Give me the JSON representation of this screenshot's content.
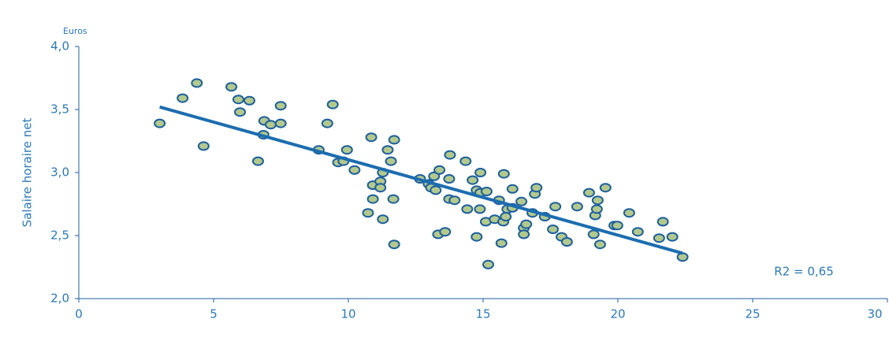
{
  "chart_data": {
    "type": "scatter",
    "y_label": "Salaire horaire net",
    "y_unit": "Euros",
    "annotation": "R2 = 0,65",
    "xlim": [
      0,
      30
    ],
    "xticks": [
      0,
      5,
      10,
      15,
      20,
      25,
      30
    ],
    "ylim": [
      2,
      4
    ],
    "yticks": [
      {
        "value": 2,
        "label": "2,0"
      },
      {
        "value": 2.5,
        "label": "2,5"
      },
      {
        "value": 3,
        "label": "3,0"
      },
      {
        "value": 3.5,
        "label": "3,5"
      },
      {
        "value": 4,
        "label": "4,0"
      }
    ],
    "color": "#b3c98c",
    "edge_color": "#1d5f9f",
    "line_color": "#1c6db0",
    "x": [
      3.0,
      3.85,
      4.38,
      4.63,
      5.66,
      5.92,
      5.98,
      6.33,
      6.65,
      6.85,
      6.88,
      7.12,
      7.49,
      7.49,
      8.9,
      9.22,
      9.42,
      9.62,
      9.82,
      9.95,
      10.23,
      10.73,
      10.85,
      10.91,
      10.91,
      11.19,
      11.19,
      11.28,
      11.28,
      11.46,
      11.58,
      11.67,
      11.7,
      11.7,
      12.66,
      12.98,
      13.07,
      13.18,
      13.24,
      13.38,
      13.33,
      13.59,
      13.74,
      13.77,
      13.74,
      13.94,
      14.35,
      14.41,
      14.61,
      14.76,
      14.76,
      14.9,
      14.88,
      14.9,
      15.13,
      15.1,
      15.19,
      15.43,
      15.59,
      15.68,
      15.77,
      15.75,
      15.9,
      15.84,
      16.09,
      16.09,
      16.42,
      16.51,
      16.51,
      16.6,
      16.83,
      16.92,
      16.98,
      17.29,
      17.59,
      17.68,
      17.91,
      18.11,
      18.49,
      18.93,
      19.1,
      19.16,
      19.22,
      19.25,
      19.34,
      19.54,
      19.87,
      19.98,
      20.42,
      20.74,
      21.53,
      21.67,
      22.02,
      22.4
    ],
    "values": [
      3.39,
      3.59,
      3.71,
      3.21,
      3.68,
      3.58,
      3.48,
      3.57,
      3.09,
      3.3,
      3.41,
      3.38,
      3.53,
      3.39,
      3.18,
      3.39,
      3.54,
      3.08,
      3.09,
      3.18,
      3.02,
      2.68,
      3.28,
      2.9,
      2.79,
      2.93,
      2.88,
      3.0,
      2.63,
      3.18,
      3.09,
      2.79,
      3.26,
      2.43,
      2.95,
      2.91,
      2.88,
      2.97,
      2.86,
      3.02,
      2.51,
      2.53,
      2.79,
      3.14,
      2.95,
      2.78,
      3.09,
      2.71,
      2.94,
      2.86,
      2.49,
      3.0,
      2.71,
      2.84,
      2.85,
      2.61,
      2.27,
      2.63,
      2.78,
      2.44,
      2.99,
      2.61,
      2.71,
      2.65,
      2.87,
      2.72,
      2.77,
      2.56,
      2.51,
      2.59,
      2.68,
      2.83,
      2.88,
      2.65,
      2.55,
      2.73,
      2.49,
      2.45,
      2.73,
      2.84,
      2.51,
      2.66,
      2.71,
      2.78,
      2.43,
      2.88,
      2.58,
      2.58,
      2.68,
      2.53,
      2.48,
      2.61,
      2.49,
      2.33
    ],
    "trendline": {
      "x": [
        3,
        22.4
      ],
      "values": [
        3.52,
        2.36
      ]
    }
  }
}
